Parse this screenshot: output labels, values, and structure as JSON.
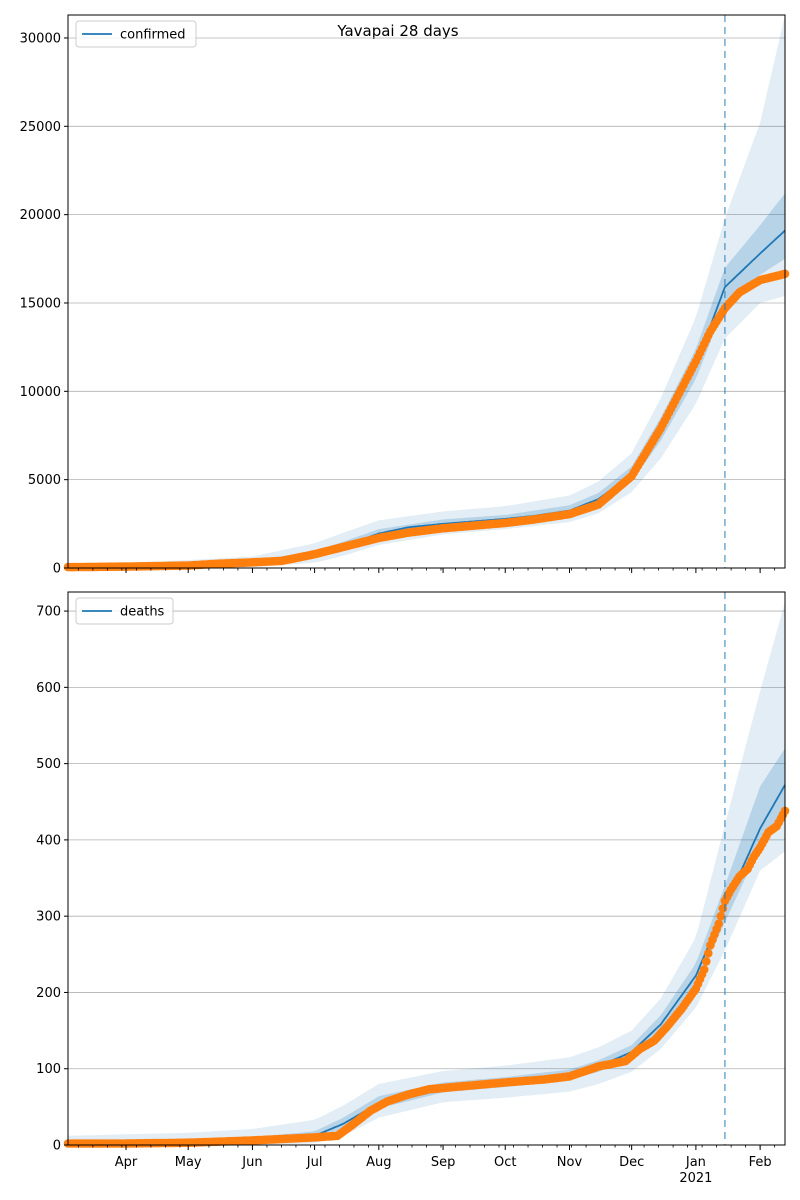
{
  "title": "Yavapai 28 days",
  "colors": {
    "model_line": "#1f77b4",
    "band": "#1f77b4",
    "observed": "#ff7f0e",
    "forecast_line": "#1f77b4",
    "grid": "#b0b0b0"
  },
  "x_axis": {
    "month_labels": [
      {
        "date": "2020-04-01",
        "label": "Apr"
      },
      {
        "date": "2020-05-01",
        "label": "May"
      },
      {
        "date": "2020-06-01",
        "label": "Jun"
      },
      {
        "date": "2020-07-01",
        "label": "Jul"
      },
      {
        "date": "2020-08-01",
        "label": "Aug"
      },
      {
        "date": "2020-09-01",
        "label": "Sep"
      },
      {
        "date": "2020-10-01",
        "label": "Oct"
      },
      {
        "date": "2020-11-01",
        "label": "Nov"
      },
      {
        "date": "2020-12-01",
        "label": "Dec"
      },
      {
        "date": "2021-01-01",
        "label": "Jan"
      },
      {
        "date": "2021-02-01",
        "label": "Feb"
      }
    ],
    "year_label": {
      "date": "2021-01-01",
      "label": "2021"
    },
    "xlim": [
      "2020-03-04",
      "2021-02-13"
    ]
  },
  "chart_data": [
    {
      "type": "line",
      "legend": "confirmed",
      "legend_position": "top-left",
      "grid": "horizontal",
      "ylim": [
        0,
        31300
      ],
      "yticks": [
        0,
        5000,
        10000,
        15000,
        20000,
        25000,
        30000
      ],
      "forecast_start": "2021-01-15",
      "model": [
        [
          "2020-03-04",
          20
        ],
        [
          "2020-04-01",
          60
        ],
        [
          "2020-05-01",
          140
        ],
        [
          "2020-06-01",
          300
        ],
        [
          "2020-06-15",
          380
        ],
        [
          "2020-07-01",
          720
        ],
        [
          "2020-07-15",
          1250
        ],
        [
          "2020-08-01",
          1950
        ],
        [
          "2020-08-15",
          2300
        ],
        [
          "2020-09-01",
          2500
        ],
        [
          "2020-10-01",
          2780
        ],
        [
          "2020-10-15",
          2950
        ],
        [
          "2020-11-01",
          3250
        ],
        [
          "2020-11-15",
          3900
        ],
        [
          "2020-12-01",
          5300
        ],
        [
          "2020-12-15",
          7800
        ],
        [
          "2021-01-01",
          11500
        ],
        [
          "2021-01-15",
          15900
        ],
        [
          "2021-02-01",
          17800
        ],
        [
          "2021-02-13",
          19100
        ]
      ],
      "band_outer": [
        [
          "2020-03-04",
          0,
          200
        ],
        [
          "2020-04-01",
          0,
          300
        ],
        [
          "2020-05-01",
          0,
          450
        ],
        [
          "2020-06-01",
          50,
          650
        ],
        [
          "2020-07-01",
          300,
          1400
        ],
        [
          "2020-07-15",
          700,
          2000
        ],
        [
          "2020-08-01",
          1300,
          2700
        ],
        [
          "2020-09-01",
          1900,
          3200
        ],
        [
          "2020-10-01",
          2200,
          3500
        ],
        [
          "2020-11-01",
          2600,
          4100
        ],
        [
          "2020-11-15",
          3100,
          4900
        ],
        [
          "2020-12-01",
          4300,
          6500
        ],
        [
          "2020-12-15",
          6200,
          9600
        ],
        [
          "2021-01-01",
          9300,
          14200
        ],
        [
          "2021-01-15",
          13000,
          19800
        ],
        [
          "2021-02-01",
          15000,
          25200
        ],
        [
          "2021-02-13",
          15400,
          31300
        ]
      ],
      "band_inner": [
        [
          "2020-03-04",
          0,
          80
        ],
        [
          "2020-04-01",
          20,
          120
        ],
        [
          "2020-05-01",
          80,
          220
        ],
        [
          "2020-06-01",
          200,
          420
        ],
        [
          "2020-07-01",
          550,
          950
        ],
        [
          "2020-07-15",
          1050,
          1500
        ],
        [
          "2020-08-01",
          1750,
          2200
        ],
        [
          "2020-09-01",
          2300,
          2750
        ],
        [
          "2020-10-01",
          2580,
          3000
        ],
        [
          "2020-11-01",
          3000,
          3550
        ],
        [
          "2020-11-15",
          3600,
          4250
        ],
        [
          "2020-12-01",
          4900,
          5750
        ],
        [
          "2020-12-15",
          7200,
          8500
        ],
        [
          "2021-01-01",
          10700,
          12400
        ],
        [
          "2021-01-15",
          14900,
          17000
        ],
        [
          "2021-02-01",
          16600,
          19400
        ],
        [
          "2021-02-13",
          17500,
          21200
        ]
      ],
      "observed": [
        [
          "2020-03-04",
          50
        ],
        [
          "2020-04-01",
          80
        ],
        [
          "2020-05-01",
          140
        ],
        [
          "2020-05-15",
          240
        ],
        [
          "2020-06-01",
          320
        ],
        [
          "2020-06-15",
          400
        ],
        [
          "2020-07-01",
          780
        ],
        [
          "2020-07-15",
          1200
        ],
        [
          "2020-08-01",
          1700
        ],
        [
          "2020-08-15",
          2000
        ],
        [
          "2020-09-01",
          2250
        ],
        [
          "2020-10-01",
          2550
        ],
        [
          "2020-10-15",
          2750
        ],
        [
          "2020-11-01",
          3050
        ],
        [
          "2020-11-15",
          3600
        ],
        [
          "2020-12-01",
          5200
        ],
        [
          "2020-12-15",
          7900
        ],
        [
          "2021-01-01",
          11700
        ],
        [
          "2021-01-08",
          13400
        ],
        [
          "2021-01-15",
          14700
        ],
        [
          "2021-01-22",
          15600
        ],
        [
          "2021-02-01",
          16300
        ],
        [
          "2021-02-13",
          16650
        ]
      ]
    },
    {
      "type": "line",
      "legend": "deaths",
      "legend_position": "top-left",
      "grid": "horizontal",
      "ylim": [
        0,
        725
      ],
      "yticks": [
        0,
        100,
        200,
        300,
        400,
        500,
        600,
        700
      ],
      "forecast_start": "2021-01-15",
      "model": [
        [
          "2020-03-04",
          1
        ],
        [
          "2020-04-01",
          2
        ],
        [
          "2020-05-01",
          3
        ],
        [
          "2020-06-01",
          6
        ],
        [
          "2020-07-01",
          12
        ],
        [
          "2020-07-15",
          28
        ],
        [
          "2020-08-01",
          55
        ],
        [
          "2020-08-15",
          68
        ],
        [
          "2020-09-01",
          75
        ],
        [
          "2020-10-01",
          82
        ],
        [
          "2020-11-01",
          92
        ],
        [
          "2020-11-15",
          103
        ],
        [
          "2020-12-01",
          122
        ],
        [
          "2020-12-15",
          158
        ],
        [
          "2021-01-01",
          222
        ],
        [
          "2021-01-15",
          312
        ],
        [
          "2021-02-01",
          415
        ],
        [
          "2021-02-13",
          472
        ]
      ],
      "band_outer": [
        [
          "2020-03-04",
          0,
          12
        ],
        [
          "2020-04-01",
          0,
          14
        ],
        [
          "2020-05-01",
          0,
          16
        ],
        [
          "2020-06-01",
          0,
          21
        ],
        [
          "2020-07-01",
          2,
          33
        ],
        [
          "2020-07-15",
          12,
          52
        ],
        [
          "2020-08-01",
          36,
          80
        ],
        [
          "2020-09-01",
          56,
          97
        ],
        [
          "2020-10-01",
          62,
          104
        ],
        [
          "2020-11-01",
          70,
          115
        ],
        [
          "2020-11-15",
          80,
          128
        ],
        [
          "2020-12-01",
          96,
          150
        ],
        [
          "2020-12-15",
          126,
          192
        ],
        [
          "2021-01-01",
          180,
          272
        ],
        [
          "2021-01-15",
          255,
          420
        ],
        [
          "2021-02-01",
          360,
          595
        ],
        [
          "2021-02-13",
          385,
          712
        ]
      ],
      "band_inner": [
        [
          "2020-03-04",
          0,
          4
        ],
        [
          "2020-04-01",
          0,
          5
        ],
        [
          "2020-05-01",
          1,
          6
        ],
        [
          "2020-06-01",
          3,
          10
        ],
        [
          "2020-07-01",
          8,
          18
        ],
        [
          "2020-07-15",
          22,
          36
        ],
        [
          "2020-08-01",
          48,
          64
        ],
        [
          "2020-09-01",
          69,
          82
        ],
        [
          "2020-10-01",
          76,
          89
        ],
        [
          "2020-11-01",
          86,
          99
        ],
        [
          "2020-11-15",
          96,
          111
        ],
        [
          "2020-12-01",
          114,
          131
        ],
        [
          "2020-12-15",
          148,
          170
        ],
        [
          "2021-01-01",
          208,
          238
        ],
        [
          "2021-01-15",
          292,
          340
        ],
        [
          "2021-02-01",
          392,
          470
        ],
        [
          "2021-02-13",
          440,
          520
        ]
      ],
      "observed": [
        [
          "2020-03-04",
          2
        ],
        [
          "2020-04-01",
          2
        ],
        [
          "2020-05-01",
          3
        ],
        [
          "2020-06-01",
          6
        ],
        [
          "2020-07-01",
          10
        ],
        [
          "2020-07-12",
          12
        ],
        [
          "2020-07-20",
          28
        ],
        [
          "2020-07-28",
          45
        ],
        [
          "2020-08-05",
          57
        ],
        [
          "2020-08-15",
          66
        ],
        [
          "2020-08-25",
          73
        ],
        [
          "2020-09-10",
          77
        ],
        [
          "2020-10-01",
          82
        ],
        [
          "2020-10-20",
          86
        ],
        [
          "2020-11-01",
          90
        ],
        [
          "2020-11-15",
          103
        ],
        [
          "2020-11-28",
          110
        ],
        [
          "2020-12-05",
          126
        ],
        [
          "2020-12-12",
          137
        ],
        [
          "2020-12-18",
          155
        ],
        [
          "2020-12-25",
          178
        ],
        [
          "2021-01-01",
          205
        ],
        [
          "2021-01-05",
          230
        ],
        [
          "2021-01-08",
          262
        ],
        [
          "2021-01-12",
          290
        ],
        [
          "2021-01-15",
          320
        ],
        [
          "2021-01-18",
          335
        ],
        [
          "2021-01-22",
          352
        ],
        [
          "2021-01-26",
          362
        ],
        [
          "2021-01-29",
          378
        ],
        [
          "2021-02-01",
          390
        ],
        [
          "2021-02-05",
          410
        ],
        [
          "2021-02-09",
          418
        ],
        [
          "2021-02-13",
          438
        ]
      ]
    }
  ]
}
